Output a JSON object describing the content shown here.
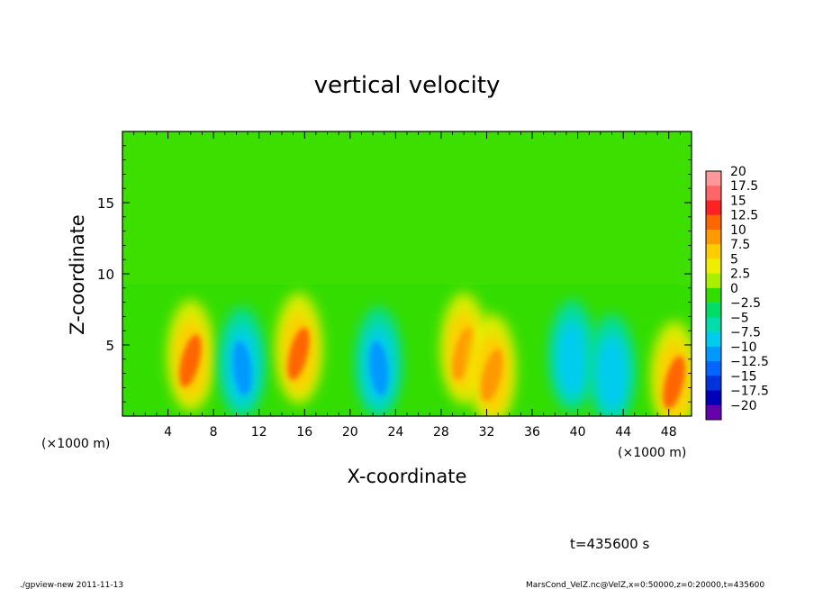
{
  "chart_data": {
    "type": "heatmap",
    "title": "vertical velocity",
    "xlabel": "X-coordinate",
    "ylabel": "Z-coordinate",
    "x_unit_left": "(×1000 m)",
    "x_unit_right": "(×1000 m)",
    "xlim": [
      0,
      50
    ],
    "ylim": [
      0,
      20
    ],
    "x_ticks": [
      4,
      8,
      12,
      16,
      20,
      24,
      28,
      32,
      36,
      40,
      44,
      48
    ],
    "y_ticks": [
      5,
      10,
      15
    ],
    "colorbar": {
      "labels": [
        "20",
        "17.5",
        "15",
        "12.5",
        "10",
        "7.5",
        "5",
        "2.5",
        "0",
        "−2.5",
        "−5",
        "−7.5",
        "−10",
        "−12.5",
        "−15",
        "−17.5",
        "−20"
      ],
      "levels": [
        20,
        17.5,
        15,
        12.5,
        10,
        7.5,
        5,
        2.5,
        0,
        -2.5,
        -5,
        -7.5,
        -10,
        -12.5,
        -15,
        -17.5,
        -20
      ],
      "colors": [
        "#ff9999",
        "#ff6666",
        "#ff2222",
        "#ff6600",
        "#ff9900",
        "#ffcc00",
        "#eeee00",
        "#aaee00",
        "#33dd00",
        "#00dd66",
        "#00ddaa",
        "#00ccee",
        "#0099ff",
        "#0066ff",
        "#0033dd",
        "#0000bb",
        "#6600aa"
      ]
    },
    "features": [
      {
        "x": 6.0,
        "z": 4.0,
        "w": 12
      },
      {
        "x": 10.5,
        "z": 3.5,
        "w": -11
      },
      {
        "x": 15.5,
        "z": 4.5,
        "w": 13
      },
      {
        "x": 22.5,
        "z": 3.5,
        "w": -9
      },
      {
        "x": 30.0,
        "z": 4.5,
        "w": 9
      },
      {
        "x": 32.5,
        "z": 3.0,
        "w": 11
      },
      {
        "x": 39.5,
        "z": 4.0,
        "w": -8
      },
      {
        "x": 43.0,
        "z": 3.0,
        "w": -7
      },
      {
        "x": 48.5,
        "z": 2.5,
        "w": 12
      }
    ],
    "time_label": "t=435600 s"
  },
  "footer": {
    "left": "./gpview-new   2011-11-13",
    "right": "MarsCond_VelZ.nc@VelZ,x=0:50000,z=0:20000,t=435600"
  }
}
